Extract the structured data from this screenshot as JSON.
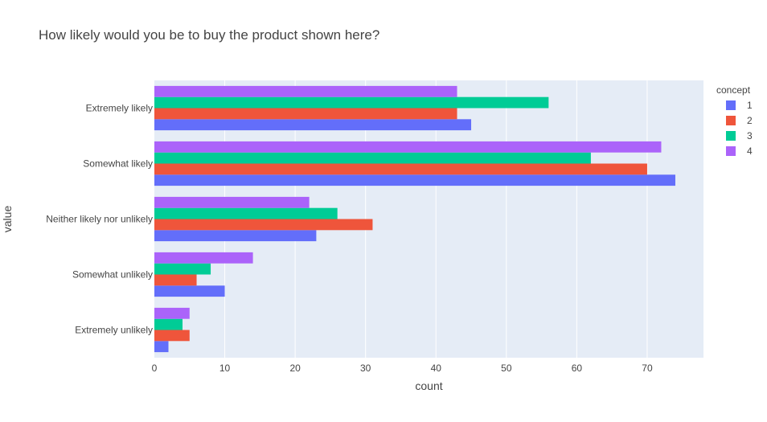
{
  "chart_data": {
    "type": "bar",
    "orientation": "horizontal",
    "title": "How likely would you be to buy the product shown here?",
    "xlabel": "count",
    "ylabel": "value",
    "xlim": [
      0,
      78
    ],
    "x_ticks": [
      0,
      10,
      20,
      30,
      40,
      50,
      60,
      70
    ],
    "grid": true,
    "legend_title": "concept",
    "legend_position": "top-right",
    "categories": [
      "Extremely likely",
      "Somewhat likely",
      "Neither likely nor unlikely",
      "Somewhat unlikely",
      "Extremely unlikely"
    ],
    "series": [
      {
        "name": "1",
        "color": "#636efa",
        "values": [
          45,
          74,
          23,
          10,
          2
        ]
      },
      {
        "name": "2",
        "color": "#ef553b",
        "values": [
          43,
          70,
          31,
          6,
          5
        ]
      },
      {
        "name": "3",
        "color": "#00cc96",
        "values": [
          56,
          62,
          26,
          8,
          4
        ]
      },
      {
        "name": "4",
        "color": "#ab63fa",
        "values": [
          43,
          72,
          22,
          14,
          5
        ]
      }
    ]
  },
  "colors": {
    "plot_background": "#e5ecf6",
    "gridline": "#ffffff",
    "text": "#444444"
  }
}
